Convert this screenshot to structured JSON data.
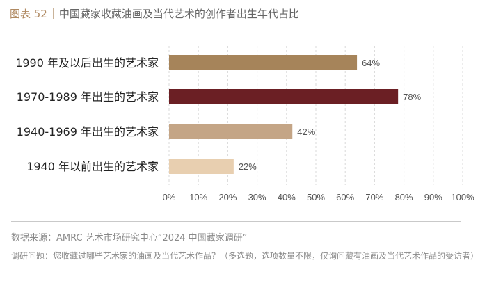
{
  "header": {
    "figure_label": "图表 52",
    "title": "中国藏家收藏油画及当代艺术的创作者出生年代占比"
  },
  "chart_data": {
    "type": "bar",
    "orientation": "horizontal",
    "categories": [
      "1990 年及以后出生的艺术家",
      "1970-1989 年出生的艺术家",
      "1940-1969 年出生的艺术家",
      "1940 年以前出生的艺术家"
    ],
    "values": [
      64,
      78,
      42,
      22
    ],
    "data_labels": [
      "64%",
      "78%",
      "42%",
      "22%"
    ],
    "colors": [
      "#a6845a",
      "#6b1f24",
      "#c4a586",
      "#e8cfb0"
    ],
    "xlim": [
      0,
      100
    ],
    "x_ticks": [
      "0%",
      "10%",
      "20%",
      "30%",
      "40%",
      "50%",
      "60%",
      "70%",
      "80%",
      "90%",
      "100%"
    ],
    "grid": true,
    "title": "",
    "xlabel": "",
    "ylabel": ""
  },
  "footer": {
    "source": "数据来源：AMRC 艺术市场研究中心“2024 中国藏家调研”",
    "question": "调研问题：您收藏过哪些艺术家的油画及当代艺术作品？（多选题，选项数量不限，仅询问藏有油画及当代艺术作品的受访者）"
  }
}
